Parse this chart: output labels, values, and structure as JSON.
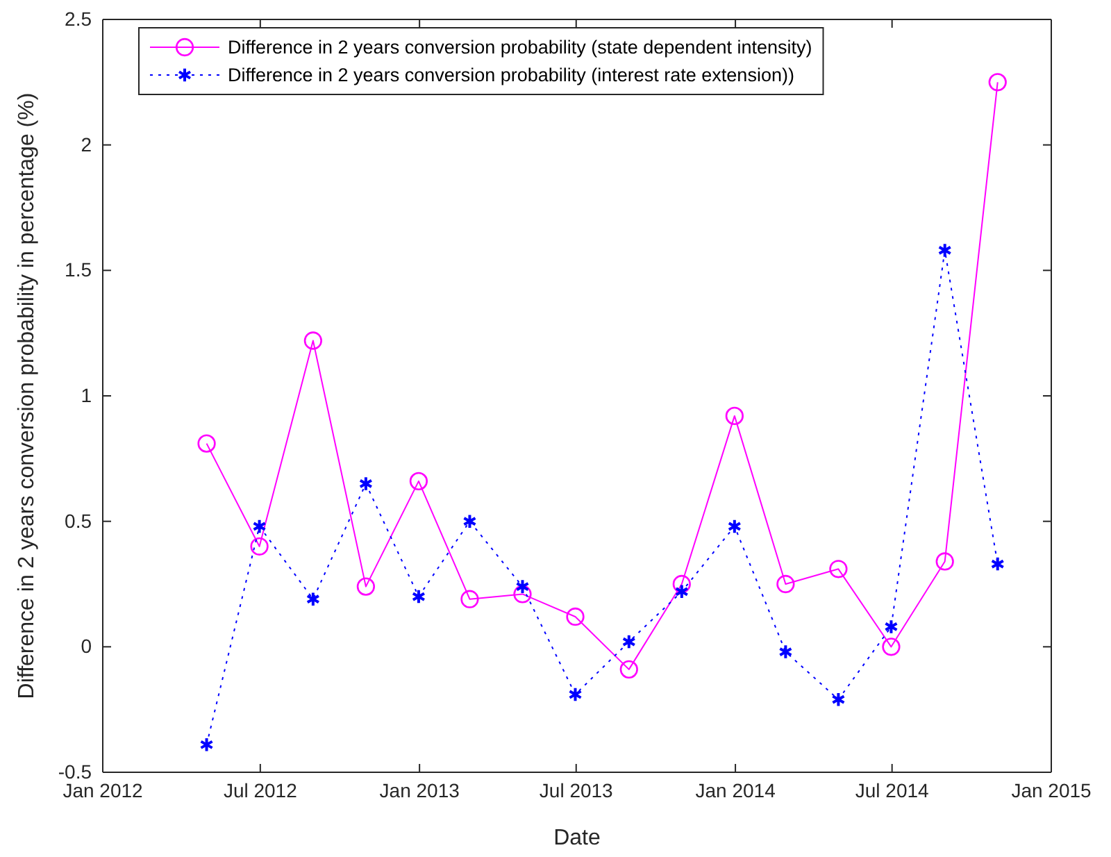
{
  "chart_data": {
    "type": "line",
    "xlabel": "Date",
    "ylabel": "Difference in 2 years conversion probability in percentage (%)",
    "x": [
      "2012-04-30",
      "2012-06-30",
      "2012-08-31",
      "2012-10-31",
      "2012-12-31",
      "2013-02-28",
      "2013-04-30",
      "2013-06-30",
      "2013-08-31",
      "2013-10-31",
      "2013-12-31",
      "2014-02-28",
      "2014-04-30",
      "2014-06-30",
      "2014-08-31",
      "2014-10-31"
    ],
    "series": [
      {
        "name": "Difference in 2 years conversion probability (state dependent intensity)",
        "color": "#ff00ff",
        "marker": "circle",
        "line_style": "solid",
        "values": [
          0.81,
          0.4,
          1.22,
          0.24,
          0.66,
          0.19,
          0.21,
          0.12,
          -0.09,
          0.25,
          0.92,
          0.25,
          0.31,
          0.0,
          0.34,
          2.25
        ]
      },
      {
        "name": "Difference in 2 years conversion probability (interest rate extension))",
        "color": "#0000ff",
        "marker": "cross",
        "line_style": "dotted",
        "values": [
          -0.39,
          0.48,
          0.19,
          0.65,
          0.2,
          0.5,
          0.24,
          -0.19,
          0.02,
          0.22,
          0.48,
          -0.02,
          -0.21,
          0.08,
          1.58,
          0.33
        ]
      }
    ],
    "xlim": [
      "2012-01-01",
      "2015-01-01"
    ],
    "xticks": [
      {
        "value": "2012-01-01",
        "label": "Jan 2012"
      },
      {
        "value": "2012-07-01",
        "label": "Jul 2012"
      },
      {
        "value": "2013-01-01",
        "label": "Jan 2013"
      },
      {
        "value": "2013-07-01",
        "label": "Jul 2013"
      },
      {
        "value": "2014-01-01",
        "label": "Jan 2014"
      },
      {
        "value": "2014-07-01",
        "label": "Jul 2014"
      },
      {
        "value": "2015-01-01",
        "label": "Jan 2015"
      }
    ],
    "ylim": [
      -0.5,
      2.5
    ],
    "yticks": [
      -0.5,
      0,
      0.5,
      1,
      1.5,
      2,
      2.5
    ],
    "grid": false,
    "legend": "top left"
  }
}
